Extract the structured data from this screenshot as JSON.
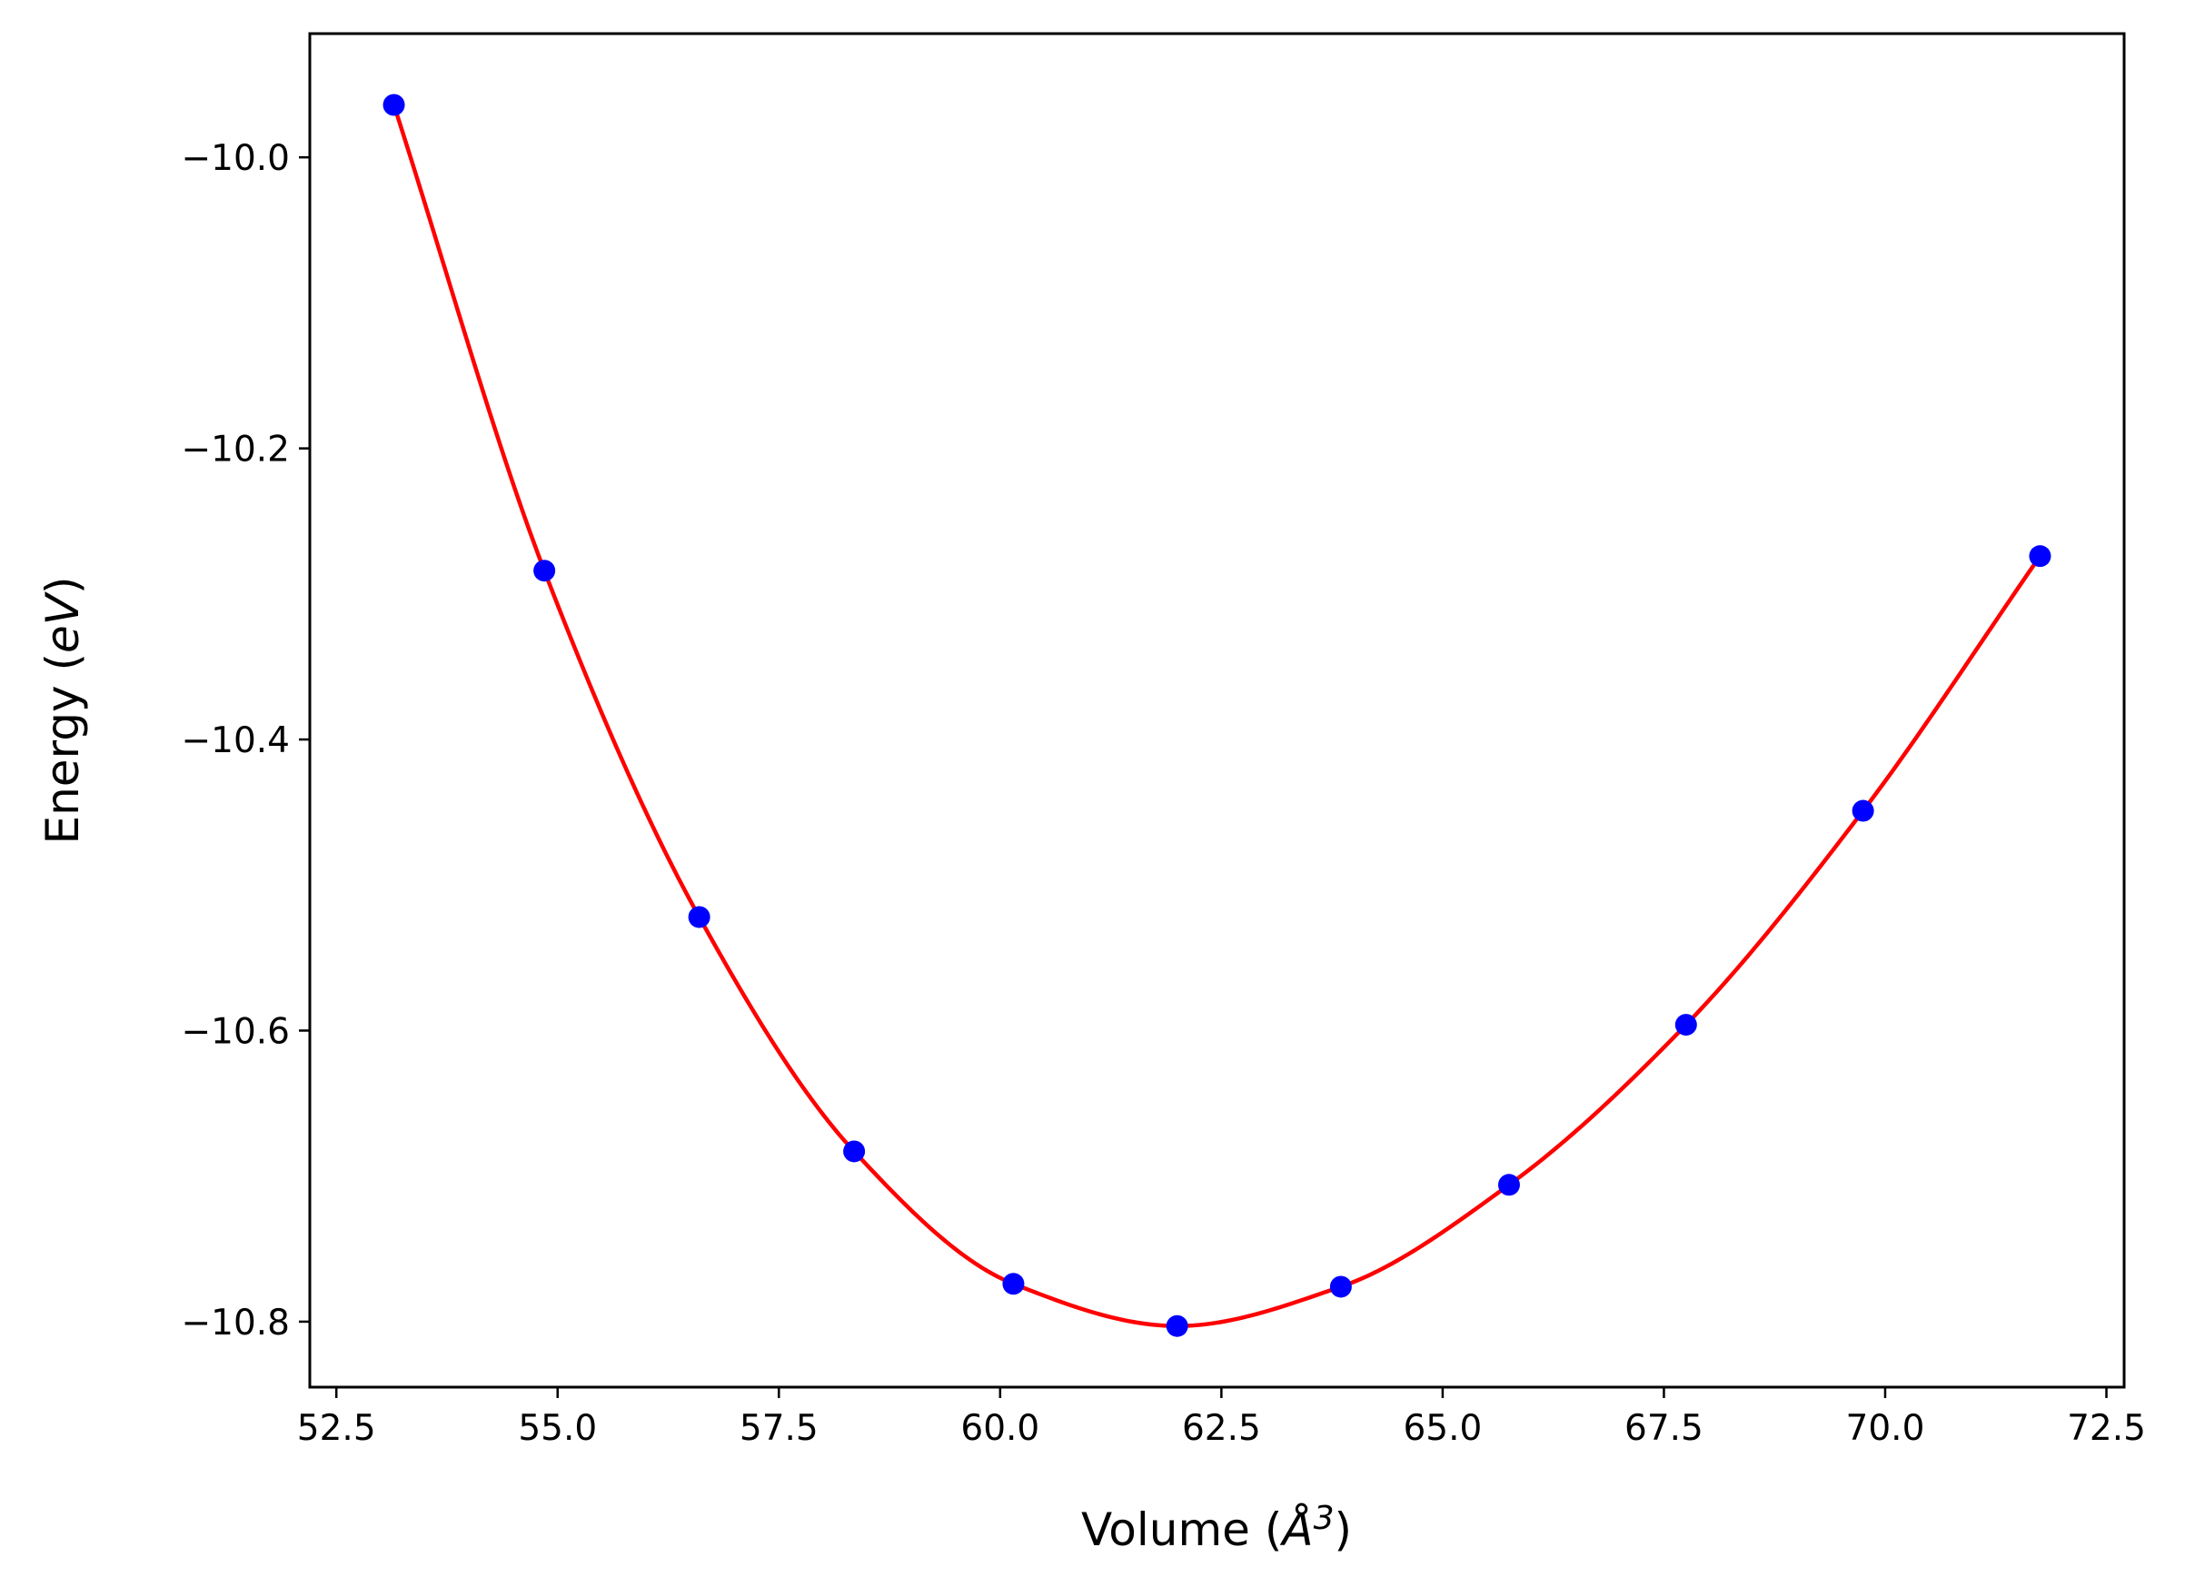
{
  "chart_data": {
    "type": "scatter",
    "xlabel": "Volume (",
    "xlabel_symbol": "Å",
    "xlabel_exponent": "3",
    "xlabel_close": ")",
    "ylabel": "Energy (",
    "ylabel_unit": "eV",
    "ylabel_close": ")",
    "xlim": [
      52.2,
      72.7
    ],
    "ylim": [
      -10.845,
      -9.915
    ],
    "x_ticks": [
      52.5,
      55.0,
      57.5,
      60.0,
      62.5,
      65.0,
      67.5,
      70.0,
      72.5
    ],
    "x_tick_labels": [
      "52.5",
      "55.0",
      "57.5",
      "60.0",
      "62.5",
      "65.0",
      "67.5",
      "70.0",
      "72.5"
    ],
    "y_ticks": [
      -10.0,
      -10.2,
      -10.4,
      -10.6,
      -10.8
    ],
    "y_tick_labels": [
      "−10.0",
      "−10.2",
      "−10.4",
      "−10.6",
      "−10.8"
    ],
    "grid": false,
    "series": [
      {
        "kind": "points",
        "color": "#0000ff",
        "x": [
          53.15,
          54.85,
          56.6,
          58.35,
          60.15,
          62.0,
          63.85,
          65.75,
          67.75,
          69.75,
          71.75
        ],
        "y": [
          -9.964,
          -10.284,
          -10.522,
          -10.683,
          -10.774,
          -10.803,
          -10.776,
          -10.706,
          -10.596,
          -10.449,
          -10.274
        ]
      },
      {
        "kind": "fit-curve",
        "color": "#ff0000",
        "x": [
          53.15,
          54.85,
          56.6,
          58.35,
          60.15,
          62.0,
          63.85,
          65.75,
          67.75,
          69.75,
          71.75
        ],
        "y": [
          -9.964,
          -10.284,
          -10.522,
          -10.683,
          -10.774,
          -10.803,
          -10.776,
          -10.706,
          -10.596,
          -10.449,
          -10.274
        ]
      }
    ]
  }
}
